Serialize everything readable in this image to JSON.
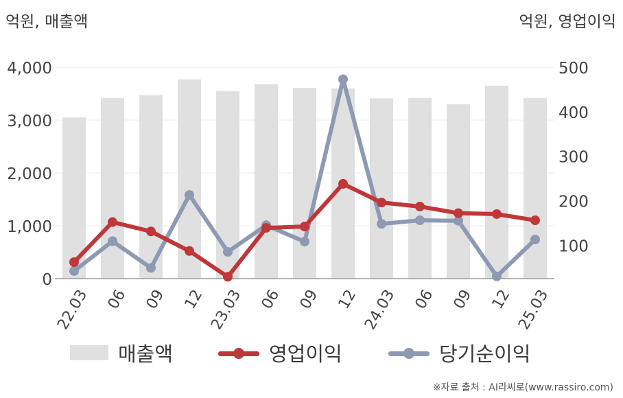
{
  "units": {
    "left": "억원, 매출액",
    "right": "억원, 영업이익"
  },
  "legend": {
    "revenue": "매출액",
    "operating": "영업이익",
    "net": "당기순이익"
  },
  "source": "※자료 출처 : AI라씨로(www.rassiro.com)",
  "colors": {
    "bar": "#e0e0e0",
    "operating": "#c0373a",
    "net": "#8e9ab4",
    "axis": "#999999",
    "grid": "#eeeeee"
  },
  "chart_data": {
    "type": "bar+line",
    "categories": [
      "22.03",
      "06",
      "09",
      "12",
      "23.03",
      "06",
      "09",
      "12",
      "24.03",
      "06",
      "09",
      "12",
      "25.03"
    ],
    "y_left": {
      "ylim": [
        0,
        4000
      ],
      "ticks": [
        "0",
        "1,000",
        "2,000",
        "3,000",
        "4,000"
      ]
    },
    "y_right": {
      "ylim": [
        25,
        500
      ],
      "ticks": [
        "100",
        "200",
        "300",
        "400",
        "500"
      ]
    },
    "series": [
      {
        "name": "매출액",
        "type": "bar",
        "axis": "left",
        "values": [
          3050,
          3420,
          3470,
          3770,
          3550,
          3680,
          3610,
          3600,
          3410,
          3420,
          3300,
          3650,
          3420
        ]
      },
      {
        "name": "영업이익",
        "type": "line",
        "axis": "right",
        "values": [
          62,
          152,
          131,
          87,
          29,
          139,
          142,
          238,
          196,
          187,
          172,
          170,
          156
        ]
      },
      {
        "name": "당기순이익",
        "type": "line",
        "axis": "right",
        "values": [
          42,
          109,
          49,
          213,
          85,
          145,
          108,
          473,
          148,
          156,
          155,
          30,
          113
        ]
      }
    ]
  }
}
